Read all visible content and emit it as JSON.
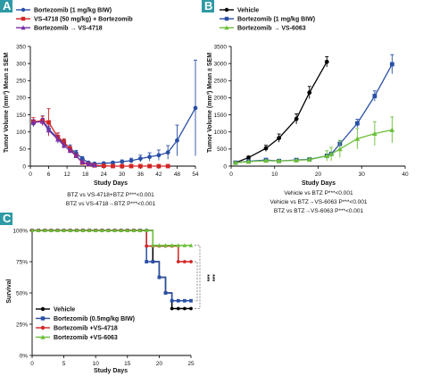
{
  "panels": [
    {
      "badge": "A",
      "badge_color": "#2e9aa6"
    },
    {
      "badge": "B",
      "badge_color": "#2e9aa6"
    },
    {
      "badge": "C",
      "badge_color": "#2e9aa6"
    }
  ],
  "chart_data": [
    {
      "type": "line",
      "panel": "A",
      "title": "",
      "xlabel": "Study Days",
      "ylabel": "Tumor Volume (mm³) Mean ± SEM",
      "xlim": [
        0,
        54
      ],
      "ylim": [
        0,
        350
      ],
      "xticks": [
        0,
        6,
        12,
        18,
        24,
        30,
        36,
        42,
        48,
        54
      ],
      "yticks": [
        0,
        50,
        100,
        150,
        200,
        250,
        300,
        350
      ],
      "legend_position": "top-left",
      "series": [
        {
          "name": "Bortezomib (1 mg/kg BIW)",
          "color": "#2a4fa6",
          "marker": "circle",
          "x": [
            1,
            4,
            6,
            9,
            11,
            13,
            15,
            17,
            19,
            21,
            24,
            27,
            30,
            33,
            36,
            39,
            42,
            45,
            48,
            54
          ],
          "y": [
            125,
            135,
            108,
            82,
            65,
            52,
            38,
            22,
            10,
            7,
            8,
            10,
            13,
            16,
            22,
            27,
            32,
            40,
            75,
            170
          ],
          "err": [
            10,
            12,
            15,
            15,
            12,
            10,
            8,
            6,
            4,
            3,
            3,
            4,
            5,
            7,
            10,
            12,
            15,
            20,
            45,
            140
          ]
        },
        {
          "name": "VS-4718 (50 mg/kg) + Bortezomib",
          "color": "#d42424",
          "marker": "square",
          "x": [
            1,
            4,
            6,
            9,
            11,
            13,
            15,
            17,
            19,
            21,
            24,
            27,
            30,
            33,
            36,
            39,
            42,
            45
          ],
          "y": [
            130,
            132,
            128,
            85,
            70,
            50,
            30,
            10,
            5,
            2,
            1,
            0,
            0,
            0,
            0,
            0,
            0,
            0
          ],
          "err": [
            12,
            14,
            40,
            12,
            10,
            8,
            6,
            4,
            3,
            2,
            1,
            0,
            0,
            0,
            0,
            0,
            0,
            0
          ]
        },
        {
          "name": "Bortezomib → VS-4718",
          "color": "#7a2fa8",
          "marker": "triangle",
          "x": [
            1,
            4,
            6,
            9,
            11,
            13,
            15,
            17,
            19,
            21
          ],
          "y": [
            128,
            130,
            105,
            78,
            60,
            45,
            30,
            12,
            6,
            3
          ],
          "err": [
            8,
            10,
            12,
            10,
            8,
            7,
            5,
            3,
            2,
            1
          ]
        }
      ],
      "notes": [
        "BTZ vs VS-4718+BTZ P***<0.001",
        "BTZ vs VS-4718→BTZ P***<0.001"
      ]
    },
    {
      "type": "line",
      "panel": "B",
      "title": "",
      "xlabel": "Study Days",
      "ylabel": "Tumor Volume (mm³) Mean ± SEM",
      "xlim": [
        0,
        40
      ],
      "ylim": [
        0,
        3500
      ],
      "xticks": [
        0,
        10,
        20,
        30,
        40
      ],
      "yticks": [
        0,
        500,
        1000,
        1500,
        2000,
        2500,
        3000,
        3500
      ],
      "legend_position": "top-left",
      "series": [
        {
          "name": "Vehicle",
          "color": "#000000",
          "marker": "circle",
          "x": [
            1,
            4,
            8,
            11,
            15,
            18,
            22
          ],
          "y": [
            100,
            250,
            520,
            820,
            1380,
            2150,
            3050
          ],
          "err": [
            20,
            40,
            90,
            120,
            150,
            180,
            150
          ]
        },
        {
          "name": "Bortezomib (1 mg/kg BIW)",
          "color": "#2a4fa6",
          "marker": "square",
          "x": [
            1,
            4,
            8,
            11,
            15,
            18,
            22,
            23,
            25,
            29,
            33,
            37
          ],
          "y": [
            100,
            140,
            180,
            150,
            180,
            200,
            300,
            350,
            650,
            1250,
            2050,
            2980
          ],
          "err": [
            10,
            15,
            20,
            20,
            25,
            40,
            50,
            60,
            100,
            120,
            150,
            280
          ]
        },
        {
          "name": "Bortezomib → VS-6063",
          "color": "#6cbf3a",
          "marker": "triangle",
          "x": [
            1,
            4,
            8,
            11,
            15,
            18,
            22,
            23,
            25,
            29,
            33,
            37
          ],
          "y": [
            100,
            130,
            160,
            150,
            170,
            190,
            300,
            350,
            500,
            800,
            950,
            1060
          ],
          "err": [
            10,
            15,
            20,
            20,
            20,
            50,
            150,
            200,
            250,
            300,
            350,
            380
          ]
        }
      ],
      "notes": [
        "Vehicle vs BTZ P***<0.001",
        "Vehicle vs BTZ→VS-6063 P***<0.001",
        "BTZ vs BTZ→VS-6063 P***<0.001"
      ]
    },
    {
      "type": "line",
      "subtype": "survival",
      "panel": "C",
      "title": "",
      "xlabel": "Study Days",
      "ylabel": "Survival",
      "xlim": [
        0,
        25
      ],
      "ylim": [
        0,
        100
      ],
      "xticks": [
        0,
        5,
        10,
        15,
        20,
        25
      ],
      "yticks": [
        "0%",
        "25%",
        "50%",
        "75%",
        "100%"
      ],
      "legend_position": "bottom-left",
      "series": [
        {
          "name": "Vehicle",
          "color": "#000000",
          "marker": "circle",
          "steps": [
            [
              0,
              100
            ],
            [
              19,
              100
            ],
            [
              19,
              75
            ],
            [
              20,
              75
            ],
            [
              20,
              62.5
            ],
            [
              21,
              62.5
            ],
            [
              21,
              50
            ],
            [
              22,
              50
            ],
            [
              22,
              37.5
            ],
            [
              25,
              37.5
            ]
          ]
        },
        {
          "name": "Bortezomib (0.5mg/kg BIW)",
          "color": "#2a4fa6",
          "marker": "square",
          "steps": [
            [
              0,
              100
            ],
            [
              18,
              100
            ],
            [
              18,
              75
            ],
            [
              20,
              75
            ],
            [
              20,
              62.5
            ],
            [
              21,
              62.5
            ],
            [
              21,
              50
            ],
            [
              22,
              50
            ],
            [
              22,
              43.75
            ],
            [
              25,
              43.75
            ]
          ]
        },
        {
          "name": "Bortezomib +VS-4718",
          "color": "#d42424",
          "marker": "circle",
          "steps": [
            [
              0,
              100
            ],
            [
              18,
              100
            ],
            [
              18,
              87.5
            ],
            [
              23,
              87.5
            ],
            [
              23,
              75
            ],
            [
              25,
              75
            ]
          ]
        },
        {
          "name": "Bortezomib +VS-6063",
          "color": "#6cbf3a",
          "marker": "triangle",
          "steps": [
            [
              0,
              100
            ],
            [
              19,
              100
            ],
            [
              19,
              88
            ],
            [
              25,
              88
            ]
          ]
        }
      ],
      "significance": [
        "***",
        "***"
      ]
    }
  ]
}
